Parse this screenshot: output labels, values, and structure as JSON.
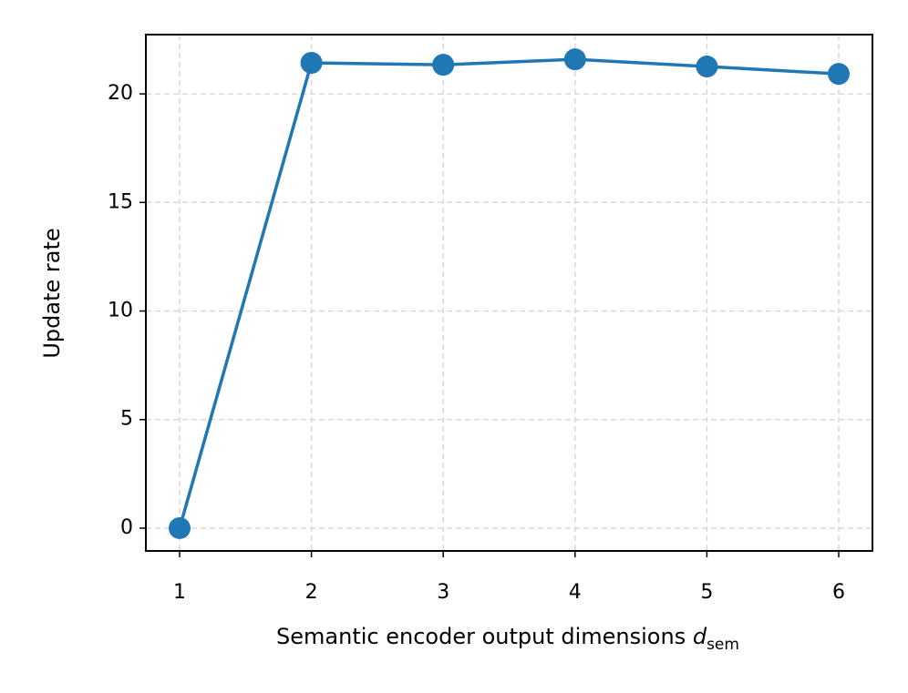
{
  "chart_data": {
    "type": "line",
    "ylabel": "Update rate",
    "xlabel": "Semantic encoder output dimensions",
    "xlabel_symbol": "d",
    "xlabel_subscript": "sem",
    "x": [
      1,
      2,
      3,
      4,
      5,
      6
    ],
    "series": [
      {
        "color": "#1f77b4",
        "values": [
          0,
          21.43,
          21.34,
          21.59,
          21.26,
          20.92
        ]
      }
    ],
    "xlim": [
      0.744,
      6.256
    ],
    "xticks": [
      1,
      2,
      3,
      4,
      5,
      6
    ],
    "ylim": [
      -1.05,
      22.73
    ],
    "yticks": [
      0,
      5,
      10,
      15,
      20
    ],
    "grid": true
  }
}
